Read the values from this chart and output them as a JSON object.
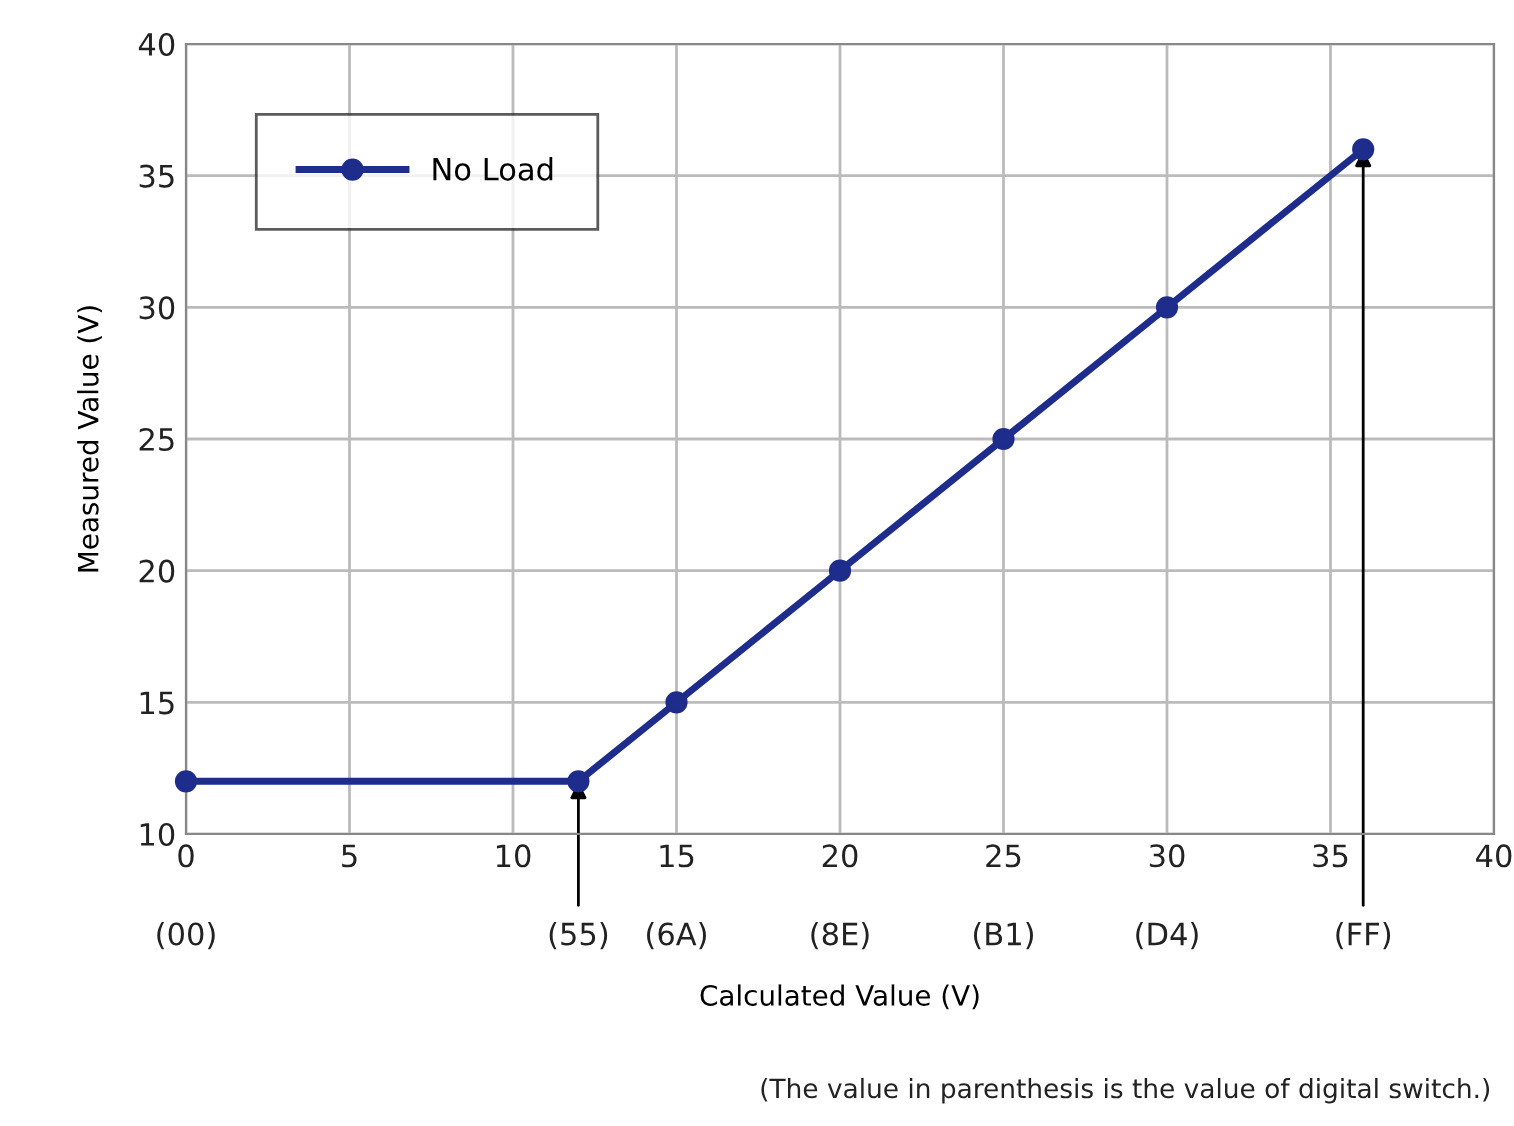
{
  "chart_data": {
    "type": "line",
    "xlabel": "Calculated Value (V)",
    "ylabel": "Measured Value (V)",
    "x": [
      0,
      12,
      15,
      20,
      25,
      30,
      36
    ],
    "series": [
      {
        "name": "No Load",
        "color": "#1e2d8c",
        "values": [
          12,
          12,
          15,
          20,
          25,
          30,
          36
        ]
      }
    ],
    "xlim": [
      0,
      40
    ],
    "xticks": [
      0,
      5,
      10,
      15,
      20,
      25,
      30,
      35,
      40
    ],
    "ylim": [
      10,
      40
    ],
    "yticks": [
      10,
      15,
      20,
      25,
      30,
      35,
      40
    ],
    "annotations": [
      "(00)",
      {
        "text": "(55)",
        "x": 12,
        "y": 12
      },
      "(6A)",
      "(8E)",
      "(B1)",
      "(D4)",
      {
        "text": "(FF)",
        "x": 36,
        "y": 36
      },
      "(The value in parenthesis is the value of digital switch.)"
    ],
    "grid": true,
    "legend": "top left",
    "marker": "circle",
    "line_style": "solid"
  }
}
